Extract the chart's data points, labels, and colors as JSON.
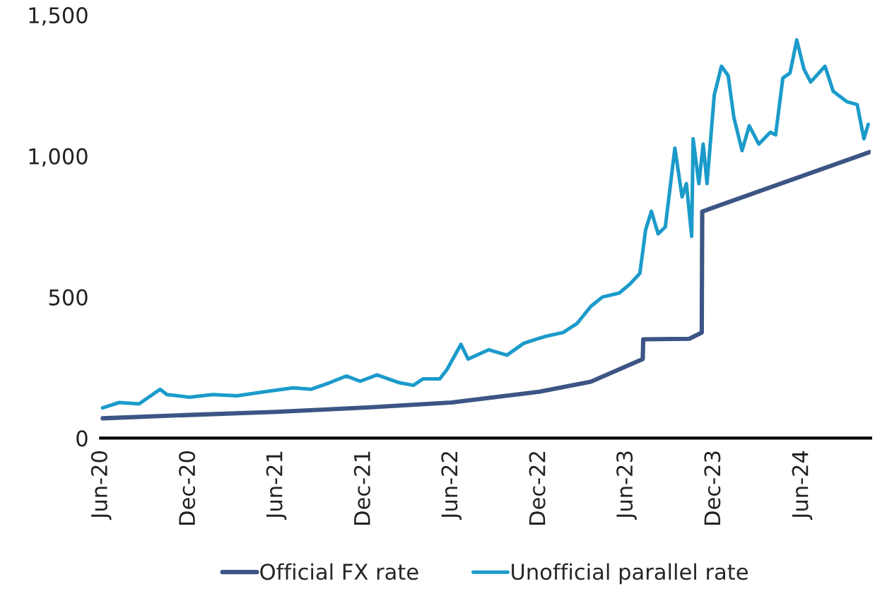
{
  "chart_data": {
    "type": "line",
    "xlim": [
      "2020-05-31",
      "2024-10-22"
    ],
    "xticks": [
      {
        "value": "2020-06-01",
        "label": "Jun-20"
      },
      {
        "value": "2020-12-01",
        "label": "Dec-20"
      },
      {
        "value": "2021-06-01",
        "label": "Jun-21"
      },
      {
        "value": "2021-12-01",
        "label": "Dec-21"
      },
      {
        "value": "2022-06-01",
        "label": "Jun-22"
      },
      {
        "value": "2022-12-01",
        "label": "Dec-22"
      },
      {
        "value": "2023-06-01",
        "label": "Jun-23"
      },
      {
        "value": "2023-12-01",
        "label": "Dec-23"
      },
      {
        "value": "2024-06-01",
        "label": "Jun-24"
      }
    ],
    "ylim": [
      0,
      1500
    ],
    "yticks": [
      0,
      500,
      {
        "value": 1000,
        "label": "1,000"
      },
      {
        "value": 1500,
        "label": "1,500"
      }
    ],
    "grid": false,
    "legend": "bottom",
    "marker": "none",
    "line_style": "solid",
    "series": [
      {
        "name": "Official FX rate",
        "color": "#3d5585",
        "x": [
          "2020-06-04",
          "2020-12-02",
          "2021-06-01",
          "2021-12-02",
          "2022-06-01",
          "2022-12-01",
          "2023-03-19",
          "2023-07-05",
          "2023-07-06",
          "2023-10-10",
          "2023-11-05",
          "2023-11-06",
          "2024-10-20"
        ],
        "values": [
          70,
          82,
          93,
          108,
          126,
          164,
          200,
          280,
          350,
          352,
          374,
          803,
          1014
        ]
      },
      {
        "name": "Unofficial parallel rate",
        "color": "#1b9bca",
        "x": [
          "2020-06-04",
          "2020-07-09",
          "2020-08-19",
          "2020-10-02",
          "2020-10-16",
          "2020-12-02",
          "2021-01-20",
          "2021-03-11",
          "2021-05-08",
          "2021-07-06",
          "2021-08-13",
          "2021-09-20",
          "2021-10-25",
          "2021-11-23",
          "2021-12-28",
          "2022-02-13",
          "2022-03-14",
          "2022-04-03",
          "2022-05-08",
          "2022-05-23",
          "2022-06-21",
          "2022-07-06",
          "2022-08-18",
          "2022-09-25",
          "2022-10-30",
          "2022-12-13",
          "2023-01-20",
          "2023-02-18",
          "2023-03-19",
          "2023-04-12",
          "2023-05-17",
          "2023-06-09",
          "2023-06-29",
          "2023-07-11",
          "2023-07-23",
          "2023-08-06",
          "2023-08-21",
          "2023-09-10",
          "2023-09-25",
          "2023-10-04",
          "2023-10-15",
          "2023-10-18",
          "2023-10-30",
          "2023-11-08",
          "2023-11-16",
          "2023-12-01",
          "2023-12-16",
          "2023-12-30",
          "2024-01-11",
          "2024-01-28",
          "2024-02-12",
          "2024-03-03",
          "2024-03-27",
          "2024-04-07",
          "2024-04-22",
          "2024-05-07",
          "2024-05-21",
          "2024-06-05",
          "2024-06-19",
          "2024-07-19",
          "2024-08-05",
          "2024-09-03",
          "2024-09-24",
          "2024-10-08",
          "2024-10-17"
        ],
        "values": [
          107,
          126,
          121,
          173,
          154,
          145,
          154,
          150,
          164,
          178,
          173,
          196,
          220,
          201,
          224,
          196,
          187,
          210,
          210,
          243,
          332,
          280,
          313,
          294,
          336,
          360,
          374,
          406,
          467,
          500,
          514,
          547,
          584,
          738,
          804,
          724,
          748,
          1028,
          855,
          902,
          715,
          1061,
          902,
          1042,
          902,
          1215,
          1318,
          1285,
          1136,
          1019,
          1107,
          1042,
          1084,
          1075,
          1276,
          1294,
          1411,
          1308,
          1262,
          1318,
          1229,
          1192,
          1182,
          1061,
          1112
        ]
      }
    ]
  }
}
